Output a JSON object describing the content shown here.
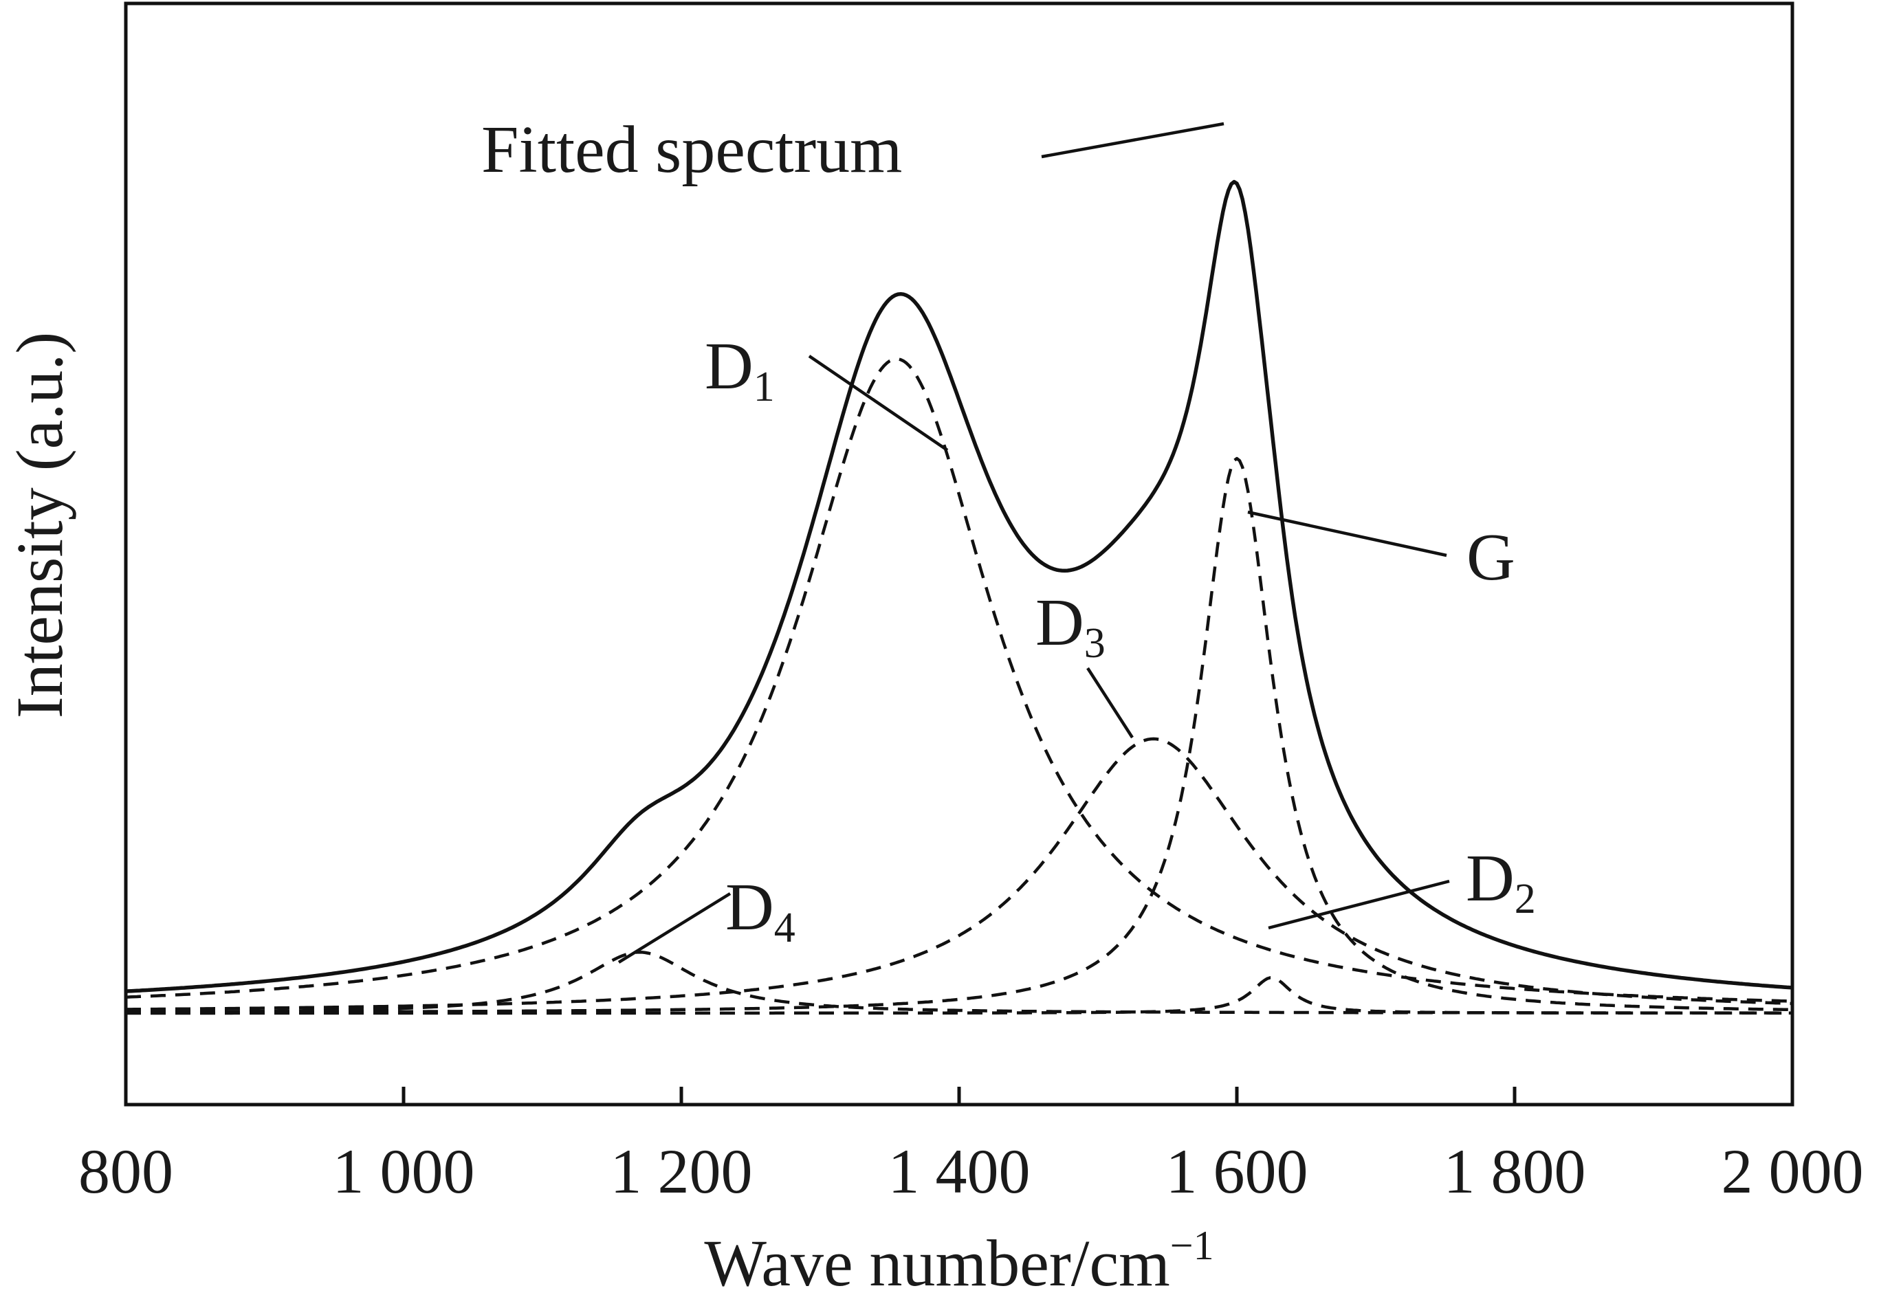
{
  "chart_data": {
    "type": "line",
    "title": "",
    "xlabel": "Wave number/cm",
    "xlabel_sup": "−1",
    "ylabel": "Intensity (a.u.)",
    "xlim": [
      800,
      2000
    ],
    "ylim": [
      0,
      1.0
    ],
    "x_ticks": [
      800,
      1000,
      1200,
      1400,
      1600,
      1800,
      2000
    ],
    "x_tick_labels": [
      "800",
      "1 000",
      "1 200",
      "1 400",
      "1 600",
      "1 800",
      "2 000"
    ],
    "y_ticks": [],
    "grid": false,
    "legend": "none",
    "baseline": 0.09,
    "series": [
      {
        "name": "Fitted spectrum",
        "style": "solid",
        "center": null,
        "amplitude": null,
        "hwhm": null
      },
      {
        "name": "D1",
        "style": "dashed",
        "center": 1355,
        "amplitude": 0.644,
        "hwhm": 88
      },
      {
        "name": "G",
        "style": "dashed",
        "center": 1600,
        "amplitude": 0.546,
        "hwhm": 32
      },
      {
        "name": "D3",
        "style": "dashed",
        "center": 1540,
        "amplitude": 0.27,
        "hwhm": 88
      },
      {
        "name": "D4",
        "style": "dashed",
        "center": 1170,
        "amplitude": 0.06,
        "hwhm": 50
      },
      {
        "name": "D2",
        "style": "dashed",
        "center": 1625,
        "amplitude": 0.035,
        "hwhm": 18
      }
    ],
    "annotations": [
      {
        "label": "Fitted spectrum",
        "main": "Fitted spectrum",
        "sub": ""
      },
      {
        "label": "D1",
        "main": "D",
        "sub": "1"
      },
      {
        "label": "G",
        "main": "G",
        "sub": ""
      },
      {
        "label": "D3",
        "main": "D",
        "sub": "3"
      },
      {
        "label": "D4",
        "main": "D",
        "sub": "4"
      },
      {
        "label": "D2",
        "main": "D",
        "sub": "2"
      }
    ]
  }
}
